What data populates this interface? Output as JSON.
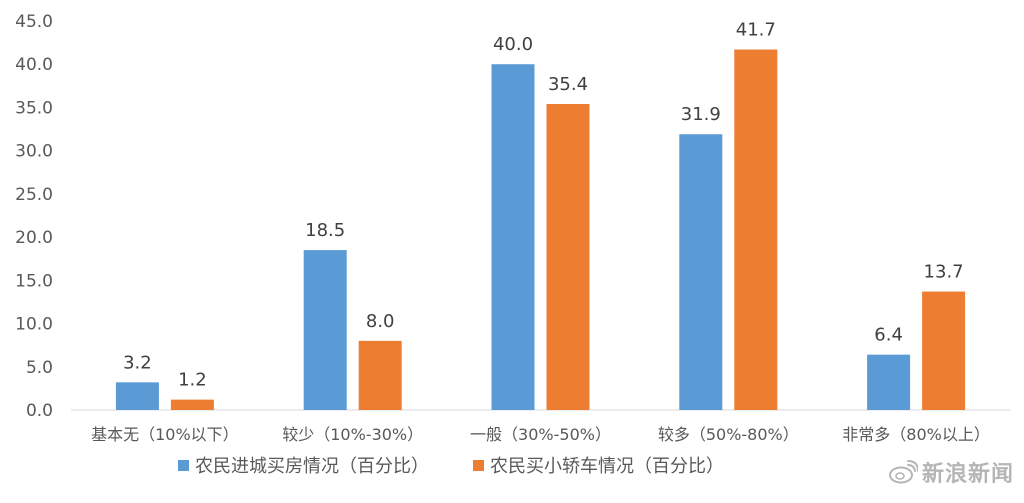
{
  "chart_data": {
    "type": "bar",
    "categories": [
      "基本无（10%以下）",
      "较少（10%-30%）",
      "一般（30%-50%）",
      "较多（50%-80%）",
      "非常多（80%以上）"
    ],
    "series": [
      {
        "name": "农民进城买房情况（百分比）",
        "values": [
          3.2,
          18.5,
          40.0,
          31.9,
          6.4
        ],
        "color": "#5b9bd5"
      },
      {
        "name": "农民买小轿车情况（百分比）",
        "values": [
          1.2,
          8.0,
          35.4,
          41.7,
          13.7
        ],
        "color": "#ed7d31"
      }
    ],
    "yticks": [
      "0.0",
      "5.0",
      "10.0",
      "15.0",
      "20.0",
      "25.0",
      "30.0",
      "35.0",
      "40.0",
      "45.0"
    ],
    "ylim": [
      0,
      45
    ],
    "grid": false,
    "legend_position": "bottom"
  },
  "watermark": {
    "text": "新浪新闻",
    "icon": "weibo-icon"
  }
}
